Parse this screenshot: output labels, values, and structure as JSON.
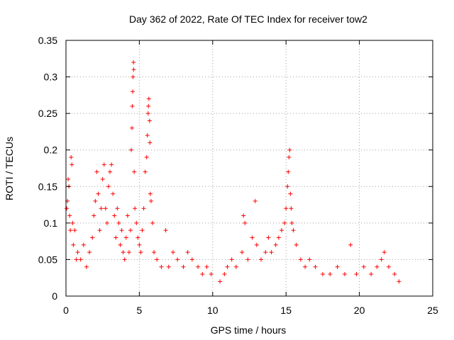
{
  "chart_data": {
    "type": "scatter",
    "title": "Day 362 of 2022, Rate Of TEC Index for receiver tow2",
    "xlabel": "GPS time / hours",
    "ylabel": "ROTI / TECUs",
    "xlim": [
      0,
      25
    ],
    "ylim": [
      0,
      0.35
    ],
    "xticks": [
      0,
      5,
      10,
      15,
      20,
      25
    ],
    "xtick_labels": [
      "0",
      "5",
      "10",
      "15",
      "20",
      "25"
    ],
    "yticks": [
      0,
      0.05,
      0.1,
      0.15,
      0.2,
      0.25,
      0.3,
      0.35
    ],
    "ytick_labels": [
      "0",
      "0.05",
      "0.1",
      "0.15",
      "0.2",
      "0.25",
      "0.3",
      "0.35"
    ],
    "grid": true,
    "marker": "plus",
    "point_color": "#ff0000",
    "series": [
      {
        "points": [
          [
            0.05,
            0.12
          ],
          [
            0.1,
            0.13
          ],
          [
            0.15,
            0.16
          ],
          [
            0.2,
            0.15
          ],
          [
            0.25,
            0.11
          ],
          [
            0.3,
            0.09
          ],
          [
            0.35,
            0.19
          ],
          [
            0.4,
            0.18
          ],
          [
            0.45,
            0.1
          ],
          [
            0.5,
            0.07
          ],
          [
            0.6,
            0.09
          ],
          [
            0.7,
            0.05
          ],
          [
            0.8,
            0.06
          ],
          [
            1.0,
            0.05
          ],
          [
            1.2,
            0.07
          ],
          [
            1.4,
            0.04
          ],
          [
            1.6,
            0.06
          ],
          [
            1.8,
            0.08
          ],
          [
            1.9,
            0.11
          ],
          [
            2.0,
            0.13
          ],
          [
            2.1,
            0.17
          ],
          [
            2.2,
            0.14
          ],
          [
            2.3,
            0.09
          ],
          [
            2.4,
            0.12
          ],
          [
            2.5,
            0.16
          ],
          [
            2.6,
            0.18
          ],
          [
            2.7,
            0.12
          ],
          [
            2.8,
            0.1
          ],
          [
            2.9,
            0.15
          ],
          [
            3.0,
            0.17
          ],
          [
            3.1,
            0.18
          ],
          [
            3.2,
            0.14
          ],
          [
            3.3,
            0.11
          ],
          [
            3.4,
            0.08
          ],
          [
            3.5,
            0.12
          ],
          [
            3.6,
            0.1
          ],
          [
            3.7,
            0.07
          ],
          [
            3.8,
            0.09
          ],
          [
            3.9,
            0.06
          ],
          [
            4.0,
            0.05
          ],
          [
            4.1,
            0.08
          ],
          [
            4.2,
            0.11
          ],
          [
            4.3,
            0.06
          ],
          [
            4.4,
            0.09
          ],
          [
            4.45,
            0.2
          ],
          [
            4.5,
            0.23
          ],
          [
            4.52,
            0.26
          ],
          [
            4.55,
            0.28
          ],
          [
            4.57,
            0.3
          ],
          [
            4.6,
            0.32
          ],
          [
            4.62,
            0.31
          ],
          [
            4.65,
            0.17
          ],
          [
            4.7,
            0.12
          ],
          [
            4.8,
            0.1
          ],
          [
            4.9,
            0.08
          ],
          [
            5.0,
            0.07
          ],
          [
            5.1,
            0.06
          ],
          [
            5.2,
            0.09
          ],
          [
            5.3,
            0.12
          ],
          [
            5.4,
            0.17
          ],
          [
            5.5,
            0.19
          ],
          [
            5.55,
            0.22
          ],
          [
            5.6,
            0.25
          ],
          [
            5.62,
            0.26
          ],
          [
            5.65,
            0.27
          ],
          [
            5.7,
            0.24
          ],
          [
            5.72,
            0.21
          ],
          [
            5.75,
            0.14
          ],
          [
            5.8,
            0.13
          ],
          [
            5.9,
            0.1
          ],
          [
            6.0,
            0.06
          ],
          [
            6.2,
            0.05
          ],
          [
            6.5,
            0.04
          ],
          [
            6.8,
            0.09
          ],
          [
            7.0,
            0.04
          ],
          [
            7.3,
            0.06
          ],
          [
            7.6,
            0.05
          ],
          [
            8.0,
            0.04
          ],
          [
            8.3,
            0.06
          ],
          [
            8.6,
            0.05
          ],
          [
            9.0,
            0.04
          ],
          [
            9.3,
            0.03
          ],
          [
            9.6,
            0.04
          ],
          [
            9.9,
            0.03
          ],
          [
            10.5,
            0.02
          ],
          [
            10.8,
            0.03
          ],
          [
            11.0,
            0.04
          ],
          [
            11.3,
            0.05
          ],
          [
            11.6,
            0.04
          ],
          [
            12.0,
            0.06
          ],
          [
            12.1,
            0.11
          ],
          [
            12.2,
            0.1
          ],
          [
            12.4,
            0.05
          ],
          [
            12.7,
            0.08
          ],
          [
            12.9,
            0.13
          ],
          [
            13.0,
            0.07
          ],
          [
            13.3,
            0.05
          ],
          [
            13.6,
            0.06
          ],
          [
            13.8,
            0.08
          ],
          [
            14.0,
            0.06
          ],
          [
            14.3,
            0.07
          ],
          [
            14.5,
            0.08
          ],
          [
            14.7,
            0.09
          ],
          [
            14.9,
            0.1
          ],
          [
            15.0,
            0.12
          ],
          [
            15.1,
            0.15
          ],
          [
            15.15,
            0.17
          ],
          [
            15.2,
            0.19
          ],
          [
            15.25,
            0.2
          ],
          [
            15.3,
            0.14
          ],
          [
            15.35,
            0.12
          ],
          [
            15.4,
            0.1
          ],
          [
            15.5,
            0.09
          ],
          [
            15.7,
            0.07
          ],
          [
            16.0,
            0.05
          ],
          [
            16.3,
            0.04
          ],
          [
            16.6,
            0.05
          ],
          [
            17.0,
            0.04
          ],
          [
            17.5,
            0.03
          ],
          [
            18.0,
            0.03
          ],
          [
            18.5,
            0.04
          ],
          [
            19.0,
            0.03
          ],
          [
            19.4,
            0.07
          ],
          [
            19.8,
            0.03
          ],
          [
            20.3,
            0.04
          ],
          [
            20.8,
            0.03
          ],
          [
            21.2,
            0.04
          ],
          [
            21.5,
            0.05
          ],
          [
            21.7,
            0.06
          ],
          [
            22.0,
            0.04
          ],
          [
            22.4,
            0.03
          ],
          [
            22.7,
            0.02
          ]
        ]
      }
    ]
  }
}
